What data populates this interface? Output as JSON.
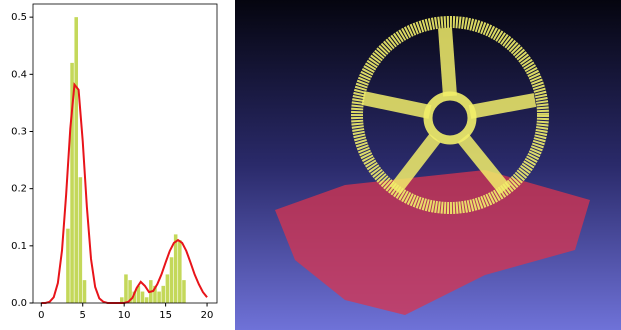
{
  "chart_data": {
    "type": "histogram",
    "bins": [
      3.0,
      3.5,
      4.0,
      4.5,
      5.0,
      5.5,
      6.0,
      6.5,
      7.0,
      7.5,
      8.0,
      8.5,
      9.0,
      9.5,
      10.0,
      10.5,
      11.0,
      11.5,
      12.0,
      12.5,
      13.0,
      13.5,
      14.0,
      14.5,
      15.0,
      15.5,
      16.0,
      16.5,
      17.0,
      17.5
    ],
    "counts": [
      0.13,
      0.42,
      0.5,
      0.22,
      0.04,
      0,
      0,
      0,
      0,
      0,
      0,
      0,
      0,
      0.01,
      0.05,
      0.04,
      0.02,
      0.03,
      0.02,
      0.01,
      0.04,
      0.03,
      0.02,
      0.03,
      0.05,
      0.08,
      0.12,
      0.11,
      0.04
    ],
    "color": "#c4d85a",
    "overlay": {
      "type": "line",
      "color": "#e8141a",
      "x": [
        0,
        0.5,
        1,
        1.5,
        2,
        2.5,
        3,
        3.5,
        4,
        4.5,
        5,
        5.5,
        6,
        6.5,
        7,
        7.5,
        8,
        8.5,
        9,
        9.5,
        10,
        10.5,
        11,
        11.5,
        12,
        12.5,
        13,
        13.5,
        14,
        14.5,
        15,
        15.5,
        16,
        16.5,
        17,
        17.5,
        18,
        18.5,
        19,
        19.5,
        20
      ],
      "values": [
        0,
        0,
        0.002,
        0.01,
        0.035,
        0.092,
        0.19,
        0.305,
        0.382,
        0.373,
        0.283,
        0.168,
        0.077,
        0.028,
        0.008,
        0.002,
        0,
        0,
        0,
        0,
        0,
        0.002,
        0.009,
        0.026,
        0.037,
        0.03,
        0.019,
        0.021,
        0.033,
        0.05,
        0.071,
        0.091,
        0.105,
        0.11,
        0.105,
        0.091,
        0.071,
        0.05,
        0.033,
        0.019,
        0.01
      ]
    },
    "xlim": [
      -1,
      21.2
    ],
    "ylim": [
      0,
      0.523
    ],
    "xticks": [
      0,
      5,
      10,
      15,
      20
    ],
    "yticks": [
      {
        "value": 0,
        "label": "0.0"
      },
      {
        "value": 0.1,
        "label": "0.1"
      },
      {
        "value": 0.2,
        "label": "0.2"
      },
      {
        "value": 0.3,
        "label": "0.3"
      },
      {
        "value": 0.4,
        "label": "0.4"
      },
      {
        "value": 0.5,
        "label": "0.5"
      }
    ]
  }
}
